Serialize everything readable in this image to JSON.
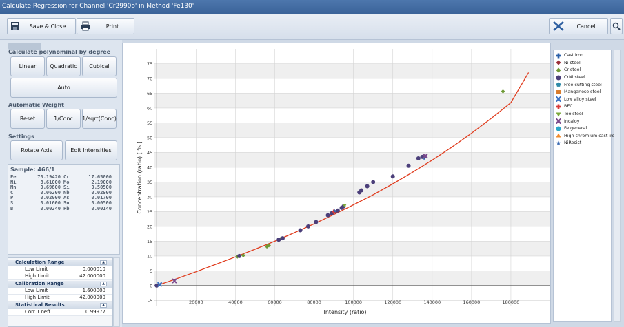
{
  "window": {
    "title": "Calculate Regression for Channel 'Cr2990o' in Method 'Fe130'"
  },
  "toolbar": {
    "save_close": "Save & Close",
    "print": "Print",
    "cancel": "Cancel"
  },
  "left": {
    "poly_title": "Calculate polynominal by degree",
    "linear": "Linear",
    "quadratic": "Quadratic",
    "cubical": "Cubical",
    "auto": "Auto",
    "weight_title": "Automatic Weight",
    "reset": "Reset",
    "inv_conc": "1/Conc",
    "inv_sqrt": "1/sqrt(Conc)",
    "settings_title": "Settings",
    "rotate_axis": "Rotate Axis",
    "edit_intensities": "Edit Intensities"
  },
  "sample": {
    "title": "Sample: 466/1",
    "rows": [
      [
        "Fe",
        "70.19420",
        "Cr",
        "17.65000"
      ],
      [
        "Ni",
        "8.61000",
        "Mo",
        "2.19000"
      ],
      [
        "Mn",
        "0.69800",
        "Si",
        "0.50500"
      ],
      [
        "C",
        "0.06200",
        "Nb",
        "0.02900"
      ],
      [
        "P",
        "0.02000",
        "As",
        "0.01700"
      ],
      [
        "S",
        "0.01600",
        "Sn",
        "0.00500"
      ],
      [
        "B",
        "0.00240",
        "Pb",
        "0.00140"
      ]
    ]
  },
  "grid": {
    "calc_range": "Calculation Range",
    "calc_low_label": "Low Limit",
    "calc_low": "0.000010",
    "calc_high_label": "High Limit",
    "calc_high": "42.000000",
    "calib_range": "Calibration Range",
    "calib_low_label": "Low Limit",
    "calib_low": "1.600000",
    "calib_high_label": "High Limit",
    "calib_high": "42.000000",
    "stats": "Statistical Results",
    "corr_label": "Corr. Coeff.",
    "corr": "0.99977"
  },
  "chart_data": {
    "type": "scatter",
    "xlabel": "Intensity (ratio)",
    "ylabel": "Concentration (ratio) [ % ]",
    "xlim": [
      -1500,
      200000
    ],
    "ylim": [
      -7,
      80
    ],
    "xticks": [
      0,
      20000,
      40000,
      60000,
      80000,
      100000,
      120000,
      140000,
      160000,
      180000
    ],
    "yticks": [
      -5,
      0,
      5,
      10,
      15,
      20,
      25,
      30,
      35,
      40,
      45,
      50,
      55,
      60,
      65,
      70,
      75
    ],
    "grid": true,
    "legend_position": "right",
    "curve_color": "#e03c1e",
    "curve": {
      "x": [
        0,
        10000,
        20000,
        30000,
        40000,
        50000,
        60000,
        70000,
        80000,
        90000,
        100000,
        110000,
        120000,
        130000,
        140000,
        150000,
        160000,
        170000,
        180000,
        189000
      ],
      "y": [
        0,
        2.3,
        4.7,
        7.2,
        9.7,
        12.3,
        15.0,
        17.9,
        20.9,
        24.0,
        27.3,
        30.7,
        34.4,
        38.3,
        42.4,
        46.8,
        51.5,
        56.5,
        61.8,
        72.0
      ]
    },
    "series": [
      {
        "name": "Cast iron",
        "color": "#2a5fa8",
        "marker": "plus",
        "points": [
          [
            136000,
            43.3
          ]
        ]
      },
      {
        "name": "Ni steel",
        "color": "#9a2e3a",
        "marker": "diamond",
        "points": [
          [
            91000,
            24.9
          ]
        ]
      },
      {
        "name": "Cr steel",
        "color": "#6f9a37",
        "marker": "diamond",
        "points": [
          [
            41000,
            9.8
          ],
          [
            44000,
            10.2
          ],
          [
            56000,
            13.2
          ],
          [
            57000,
            13.6
          ],
          [
            63000,
            15.8
          ],
          [
            176000,
            65.6
          ]
        ]
      },
      {
        "name": "CrNi steel",
        "color": "#4b3f7a",
        "marker": "circle",
        "points": [
          [
            0,
            0
          ],
          [
            42000,
            10.0
          ],
          [
            62000,
            15.5
          ],
          [
            64000,
            16.0
          ],
          [
            73000,
            18.7
          ],
          [
            77000,
            20.0
          ],
          [
            81000,
            21.5
          ],
          [
            87000,
            23.8
          ],
          [
            89000,
            24.5
          ],
          [
            92000,
            25.4
          ],
          [
            94000,
            26.3
          ],
          [
            95000,
            26.8
          ],
          [
            103000,
            31.5
          ],
          [
            104000,
            32.2
          ],
          [
            107000,
            33.6
          ],
          [
            110000,
            35.0
          ],
          [
            120000,
            36.9
          ],
          [
            128000,
            40.5
          ],
          [
            133000,
            43.0
          ],
          [
            135000,
            43.5
          ]
        ]
      },
      {
        "name": "Free cutting steel",
        "color": "#2e8aa8",
        "marker": "pentagon",
        "points": []
      },
      {
        "name": "Manganese steel",
        "color": "#d97b2b",
        "marker": "square",
        "points": []
      },
      {
        "name": "Low alloy steel",
        "color": "#3a72c4",
        "marker": "cross",
        "points": [
          [
            1500,
            0.4
          ]
        ]
      },
      {
        "name": "BEC",
        "color": "#d93a3a",
        "marker": "plus",
        "points": [
          [
            90000,
            25.0
          ]
        ]
      },
      {
        "name": "Toolsteel",
        "color": "#7aa83a",
        "marker": "triangle-down",
        "points": [
          [
            95500,
            27.1
          ]
        ]
      },
      {
        "name": "Incaloy",
        "color": "#7b4a8c",
        "marker": "cross",
        "points": [
          [
            9000,
            1.6
          ],
          [
            136500,
            43.8
          ]
        ]
      },
      {
        "name": "Fe general",
        "color": "#2aa7c9",
        "marker": "circle",
        "points": []
      },
      {
        "name": "High chromium cast iron",
        "color": "#f08a2c",
        "marker": "triangle-up",
        "points": []
      },
      {
        "name": "NiResist",
        "color": "#3667b0",
        "marker": "star",
        "points": [
          [
            90500,
            25.2
          ]
        ]
      }
    ]
  }
}
